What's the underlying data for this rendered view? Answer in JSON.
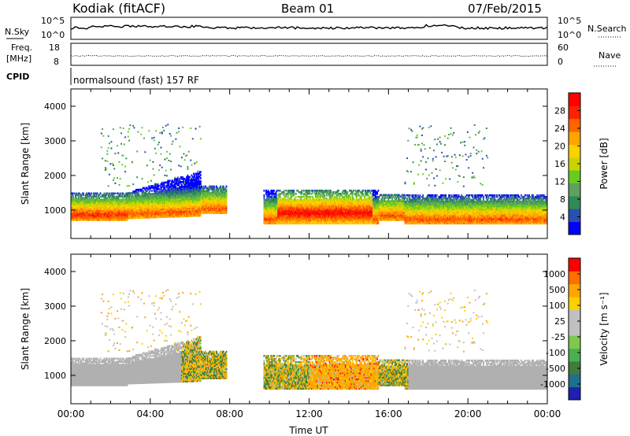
{
  "header": {
    "station": "Kodiak (fitACF)",
    "beam": "Beam 01",
    "date": "07/Feb/2015"
  },
  "noise_panel": {
    "left_label": "N.Sky",
    "right_label": "N.Search",
    "tick_top": "10^5",
    "tick_bottom": "10^0"
  },
  "freq_panel": {
    "left_label_line1": "Freq.",
    "left_label_line2": "[MHz]",
    "right_label": "Nave",
    "left_ticks": [
      "18",
      "8"
    ],
    "right_ticks": [
      "60",
      "0"
    ]
  },
  "cpid": {
    "label": "CPID",
    "value": "normalsound (fast) 157 RF"
  },
  "colors": {
    "power_scale": [
      "#0000ff",
      "#2b4fb0",
      "#2e8b57",
      "#5fa05f",
      "#66cc22",
      "#c8d400",
      "#ffd000",
      "#ffa500",
      "#ff6400",
      "#ff2200",
      "#ff0000"
    ],
    "velocity_scale": [
      "#2020b0",
      "#1f6f8f",
      "#3e7d3e",
      "#4caf50",
      "#7ec850",
      "#c0c0c0",
      "#c0c0c0",
      "#ffd000",
      "#ffa500",
      "#ff6e00",
      "#ff0000"
    ],
    "ground_scatter": "#b0b0b0"
  },
  "chart_data": [
    {
      "type": "heatmap",
      "name": "power",
      "ylabel": "Slant Range [km]",
      "xlabel": "",
      "xlim": [
        0,
        24
      ],
      "ylim": [
        180,
        4500
      ],
      "yticks": [
        "4000",
        "3000",
        "2000",
        "1000"
      ],
      "colorbar_label": "Power [dB]",
      "colorbar_ticks": [
        "28",
        "24",
        "20",
        "16",
        "12",
        "8",
        "4"
      ],
      "colorbar_range": [
        0,
        30
      ]
    },
    {
      "type": "heatmap",
      "name": "velocity",
      "ylabel": "Slant Range [km]",
      "xlabel": "Time UT",
      "xlim": [
        0,
        24
      ],
      "ylim": [
        180,
        4500
      ],
      "xticks": [
        "00:00",
        "04:00",
        "08:00",
        "12:00",
        "16:00",
        "20:00",
        "00:00"
      ],
      "yticks": [
        "4000",
        "3000",
        "2000",
        "1000"
      ],
      "colorbar_label": "Velocity [m s⁻¹]",
      "colorbar_ticks": [
        "1000",
        "500",
        "100",
        "25",
        "-25",
        "-100",
        "-500",
        "-1000"
      ]
    }
  ]
}
